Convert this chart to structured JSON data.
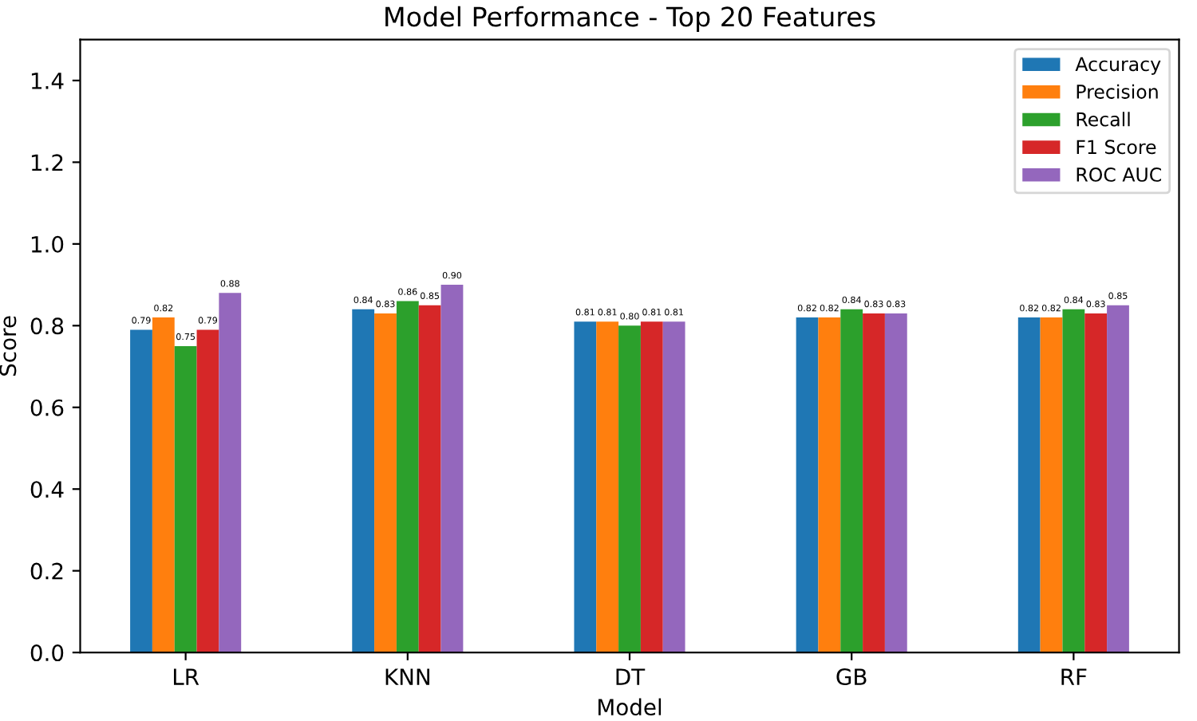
{
  "chart_data": {
    "type": "bar",
    "title": "Model Performance - Top 20 Features",
    "xlabel": "Model",
    "ylabel": "Score",
    "categories": [
      "LR",
      "KNN",
      "DT",
      "GB",
      "RF"
    ],
    "series": [
      {
        "name": "Accuracy",
        "color": "#1f77b4",
        "values": [
          0.79,
          0.84,
          0.81,
          0.82,
          0.82
        ],
        "value_labels": [
          "0.79",
          "0.84",
          "0.81",
          "0.82",
          "0.82"
        ]
      },
      {
        "name": "Precision",
        "color": "#ff7f0e",
        "values": [
          0.82,
          0.83,
          0.81,
          0.82,
          0.82
        ],
        "value_labels": [
          "0.82",
          "0.83",
          "0.81",
          "0.82",
          "0.82"
        ]
      },
      {
        "name": "Recall",
        "color": "#2ca02c",
        "values": [
          0.75,
          0.86,
          0.8,
          0.84,
          0.84
        ],
        "value_labels": [
          "0.75",
          "0.86",
          "0.80",
          "0.84",
          "0.84"
        ]
      },
      {
        "name": "F1 Score",
        "color": "#d62728",
        "values": [
          0.79,
          0.85,
          0.81,
          0.83,
          0.83
        ],
        "value_labels": [
          "0.79",
          "0.85",
          "0.81",
          "0.83",
          "0.83"
        ]
      },
      {
        "name": "ROC AUC",
        "color": "#9467bd",
        "values": [
          0.88,
          0.9,
          0.81,
          0.83,
          0.85
        ],
        "value_labels": [
          "0.88",
          "0.90",
          "0.81",
          "0.83",
          "0.85"
        ]
      }
    ],
    "ylim": [
      0,
      1.5
    ],
    "yticks": [
      {
        "value": 0,
        "label": "0.0"
      },
      {
        "value": 0.2,
        "label": "0.2"
      },
      {
        "value": 0.4,
        "label": "0.4"
      },
      {
        "value": 0.6,
        "label": "0.6"
      },
      {
        "value": 0.8,
        "label": "0.8"
      },
      {
        "value": 1,
        "label": "1.0"
      },
      {
        "value": 1.2,
        "label": "1.2"
      },
      {
        "value": 1.4,
        "label": "1.4"
      }
    ],
    "legend": "top right",
    "grid": false
  }
}
